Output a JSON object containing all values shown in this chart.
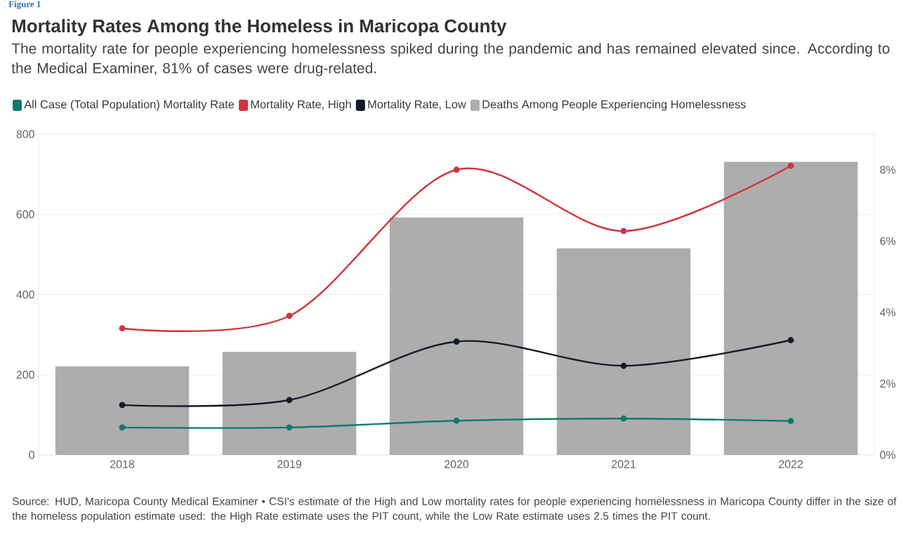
{
  "chart_data": {
    "type": "line",
    "title": "Mortality Rates Among the Homeless in Maricopa County",
    "subtitle": "The mortality rate for people experiencing homelessness spiked during the pandemic and has remained elevated since. According to the Medical Examiner, 81% of cases were drug-related.",
    "categories": [
      "2018",
      "2019",
      "2020",
      "2021",
      "2022"
    ],
    "series": [
      {
        "name": "All Case (Total Population) Mortality Rate",
        "axis": "y2",
        "color": "#0f7b6c",
        "values": [
          0.77,
          0.77,
          0.96,
          1.02,
          0.95
        ]
      },
      {
        "name": "Mortality Rate, High",
        "axis": "y2",
        "color": "#d1343b",
        "values": [
          3.55,
          3.9,
          8.0,
          6.28,
          8.11
        ]
      },
      {
        "name": "Mortality Rate, Low",
        "axis": "y2",
        "color": "#151b26",
        "values": [
          1.4,
          1.54,
          3.18,
          2.5,
          3.22
        ]
      },
      {
        "name": "Deaths Among People Experiencing Homelessness",
        "type": "bar",
        "axis": "y",
        "color": "#adadad",
        "values": [
          221,
          257,
          592,
          515,
          731
        ]
      }
    ],
    "ylim": [
      0,
      800
    ],
    "yticks": [
      0,
      200,
      400,
      600,
      800
    ],
    "y2lim": [
      0,
      9
    ],
    "y2ticks": [
      {
        "value": 0,
        "label": "0%"
      },
      {
        "value": 2,
        "label": "2%"
      },
      {
        "value": 4,
        "label": "4%"
      },
      {
        "value": 6,
        "label": "6%"
      },
      {
        "value": 8,
        "label": "8%"
      }
    ],
    "grid": "y",
    "legend": "top left",
    "marker": "circle",
    "line_style": "solid",
    "annotations": [
      "Figure 1",
      "Source: HUD, Maricopa County Medical Examiner • CSI's estimate of the High and Low mortality rates for people experiencing homelessness in Maricopa County differ in the size of the homeless population estimate used: the High Rate estimate uses the PIT count, while the Low Rate estimate uses 2.5 times the PIT count."
    ]
  }
}
